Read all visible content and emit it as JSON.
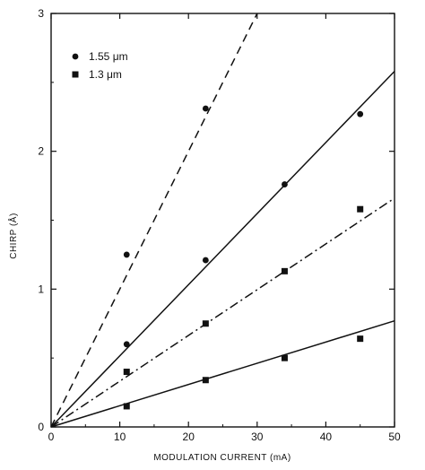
{
  "chart_data": {
    "type": "scatter",
    "title": "",
    "xlabel": "MODULATION CURRENT (mA)",
    "ylabel": "CHIRP (Å)",
    "xlim": [
      0,
      50
    ],
    "ylim": [
      0,
      3
    ],
    "xticks": [
      0,
      10,
      20,
      30,
      40,
      50
    ],
    "yticks": [
      0,
      1,
      2,
      3
    ],
    "legend_position": "top-left",
    "grid": false,
    "series": [
      {
        "name": "1.55 μm",
        "marker": "circle",
        "points": [
          {
            "x": 11,
            "y": 0.6
          },
          {
            "x": 11,
            "y": 1.25
          },
          {
            "x": 22.5,
            "y": 1.21
          },
          {
            "x": 22.5,
            "y": 2.31
          },
          {
            "x": 34,
            "y": 1.76
          },
          {
            "x": 45,
            "y": 2.27
          }
        ]
      },
      {
        "name": "1.3 μm",
        "marker": "square",
        "points": [
          {
            "x": 11,
            "y": 0.15
          },
          {
            "x": 11,
            "y": 0.4
          },
          {
            "x": 22.5,
            "y": 0.34
          },
          {
            "x": 22.5,
            "y": 0.75
          },
          {
            "x": 34,
            "y": 0.5
          },
          {
            "x": 34,
            "y": 1.13
          },
          {
            "x": 45,
            "y": 0.64
          },
          {
            "x": 45,
            "y": 1.58
          }
        ]
      }
    ],
    "fit_lines": [
      {
        "style": "dashed",
        "x": [
          0,
          30
        ],
        "y": [
          0,
          3
        ]
      },
      {
        "style": "solid",
        "x": [
          0,
          50
        ],
        "y": [
          0,
          2.58
        ]
      },
      {
        "style": "dashdot",
        "x": [
          0,
          50
        ],
        "y": [
          0,
          1.66
        ]
      },
      {
        "style": "solid",
        "x": [
          0,
          50
        ],
        "y": [
          0,
          0.77
        ]
      }
    ],
    "colors": {
      "ink": "#111111",
      "background": "#ffffff"
    }
  }
}
